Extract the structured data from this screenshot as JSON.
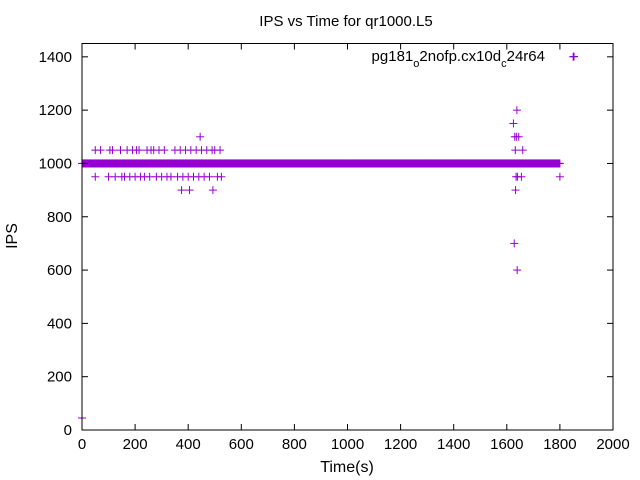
{
  "chart_data": {
    "type": "scatter",
    "title": "IPS vs Time for qr1000.L5",
    "xlabel": "Time(s)",
    "ylabel": "IPS",
    "xlim": [
      0,
      2000
    ],
    "ylim": [
      0,
      1450
    ],
    "x_ticks": [
      "0",
      "200",
      "400",
      "600",
      "800",
      "1000",
      "1200",
      "1400",
      "1600",
      "1800",
      "2000"
    ],
    "y_ticks": [
      "0",
      "200",
      "400",
      "600",
      "800",
      "1000",
      "1200",
      "1400"
    ],
    "grid": false,
    "legend_position": "top-right",
    "marker": "plus",
    "color": "#9400d3",
    "series": [
      {
        "name": "pg181_o2nofp.cx10d_c24r64",
        "baseline": {
          "y": 1000,
          "x_start": 0,
          "x_end": 1800,
          "step": 2
        },
        "points": [
          [
            0,
            45
          ],
          [
            50,
            950
          ],
          [
            50,
            1050
          ],
          [
            70,
            1050
          ],
          [
            100,
            950
          ],
          [
            105,
            1050
          ],
          [
            115,
            1050
          ],
          [
            125,
            950
          ],
          [
            145,
            1050
          ],
          [
            150,
            950
          ],
          [
            160,
            950
          ],
          [
            170,
            1050
          ],
          [
            180,
            950
          ],
          [
            190,
            1050
          ],
          [
            200,
            950
          ],
          [
            205,
            1050
          ],
          [
            215,
            1050
          ],
          [
            220,
            950
          ],
          [
            235,
            950
          ],
          [
            245,
            1050
          ],
          [
            255,
            950
          ],
          [
            260,
            1050
          ],
          [
            270,
            1050
          ],
          [
            280,
            950
          ],
          [
            290,
            1050
          ],
          [
            300,
            950
          ],
          [
            310,
            1050
          ],
          [
            320,
            950
          ],
          [
            335,
            950
          ],
          [
            350,
            1050
          ],
          [
            360,
            950
          ],
          [
            370,
            1050
          ],
          [
            375,
            900
          ],
          [
            380,
            950
          ],
          [
            390,
            1050
          ],
          [
            400,
            950
          ],
          [
            405,
            900
          ],
          [
            410,
            1050
          ],
          [
            420,
            950
          ],
          [
            430,
            1050
          ],
          [
            440,
            950
          ],
          [
            445,
            1100
          ],
          [
            450,
            1050
          ],
          [
            460,
            950
          ],
          [
            470,
            1050
          ],
          [
            480,
            950
          ],
          [
            490,
            1050
          ],
          [
            493,
            900
          ],
          [
            500,
            1050
          ],
          [
            510,
            950
          ],
          [
            520,
            1050
          ],
          [
            525,
            950
          ],
          [
            1625,
            1150
          ],
          [
            1628,
            700
          ],
          [
            1630,
            1100
          ],
          [
            1632,
            1050
          ],
          [
            1633,
            900
          ],
          [
            1635,
            950
          ],
          [
            1636,
            1100
          ],
          [
            1638,
            1200
          ],
          [
            1639,
            600
          ],
          [
            1640,
            950
          ],
          [
            1645,
            1100
          ],
          [
            1647,
            1000
          ],
          [
            1655,
            950
          ],
          [
            1660,
            1050
          ],
          [
            1800,
            950
          ],
          [
            1850,
            1400
          ]
        ]
      }
    ]
  }
}
